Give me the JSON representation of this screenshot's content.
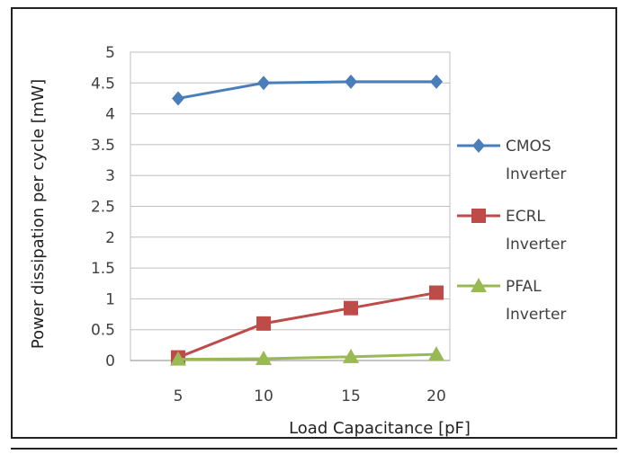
{
  "chart_data": {
    "type": "line",
    "xlabel": "Load Capacitance [pF]",
    "ylabel": "Power dissipation per cycle [mW]",
    "x": [
      5,
      10,
      15,
      20
    ],
    "ylim": [
      0,
      5
    ],
    "yticks": [
      "0",
      "0.5",
      "1",
      "1.5",
      "2",
      "2.5",
      "3",
      "3.5",
      "4",
      "4.5",
      "5"
    ],
    "xticks": [
      "5",
      "10",
      "15",
      "20"
    ],
    "grid": true,
    "legend_position": "right",
    "series": [
      {
        "name": "CMOS Inverter",
        "name_lines": [
          "CMOS",
          "Inverter"
        ],
        "color": "#4a7ebb",
        "marker": "diamond",
        "values": [
          4.25,
          4.5,
          4.52,
          4.52
        ]
      },
      {
        "name": "ECRL Inverter",
        "name_lines": [
          "ECRL",
          "Inverter"
        ],
        "color": "#be4b48",
        "marker": "square",
        "values": [
          0.05,
          0.6,
          0.85,
          1.1
        ]
      },
      {
        "name": "PFAL Inverter",
        "name_lines": [
          "PFAL",
          "Inverter"
        ],
        "color": "#98b954",
        "marker": "triangle",
        "values": [
          0.02,
          0.03,
          0.06,
          0.1
        ]
      }
    ]
  }
}
